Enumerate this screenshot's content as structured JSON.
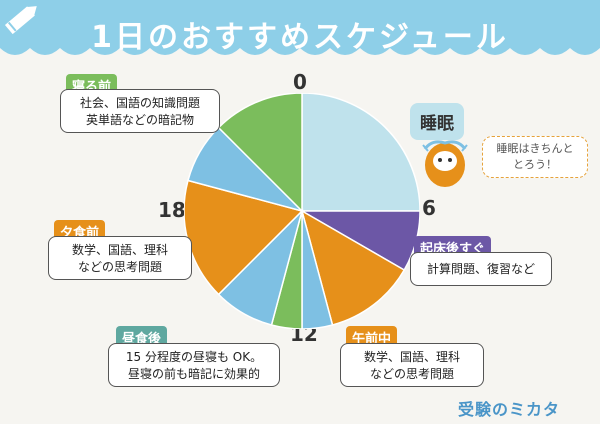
{
  "header": {
    "title": "1日のおすすめスケジュール",
    "color": "#8ecfe8"
  },
  "clock": {
    "top": "0",
    "right": "6",
    "bottom": "12",
    "left": "18"
  },
  "sleep": {
    "label": "睡眠"
  },
  "mascot": {
    "speech_line1": "睡眠はきちんと",
    "speech_line2": "とろう！"
  },
  "schedule": {
    "before_bed": {
      "tag": "寝る前",
      "line1": "社会、国語の知識問題",
      "line2": "英単語などの暗記物"
    },
    "after_wake": {
      "tag": "起床後すぐ",
      "line1": "計算問題、復習など"
    },
    "morning": {
      "tag": "午前中",
      "line1": "数学、国語、理科",
      "line2": "などの思考問題"
    },
    "after_lunch": {
      "tag": "昼食後",
      "line1": "15 分程度の昼寝も OK。",
      "line2": "昼寝の前も暗記に効果的"
    },
    "before_dinner": {
      "tag": "夕食前",
      "line1": "数学、国語、理科",
      "line2": "などの思考問題"
    }
  },
  "logo": {
    "text": "受験のミカタ"
  },
  "colors": {
    "sleep": "#bfe2ec",
    "purple": "#6c57a6",
    "orange": "#e6901a",
    "blue": "#7ec0e3",
    "green": "#7bbd5c"
  }
}
